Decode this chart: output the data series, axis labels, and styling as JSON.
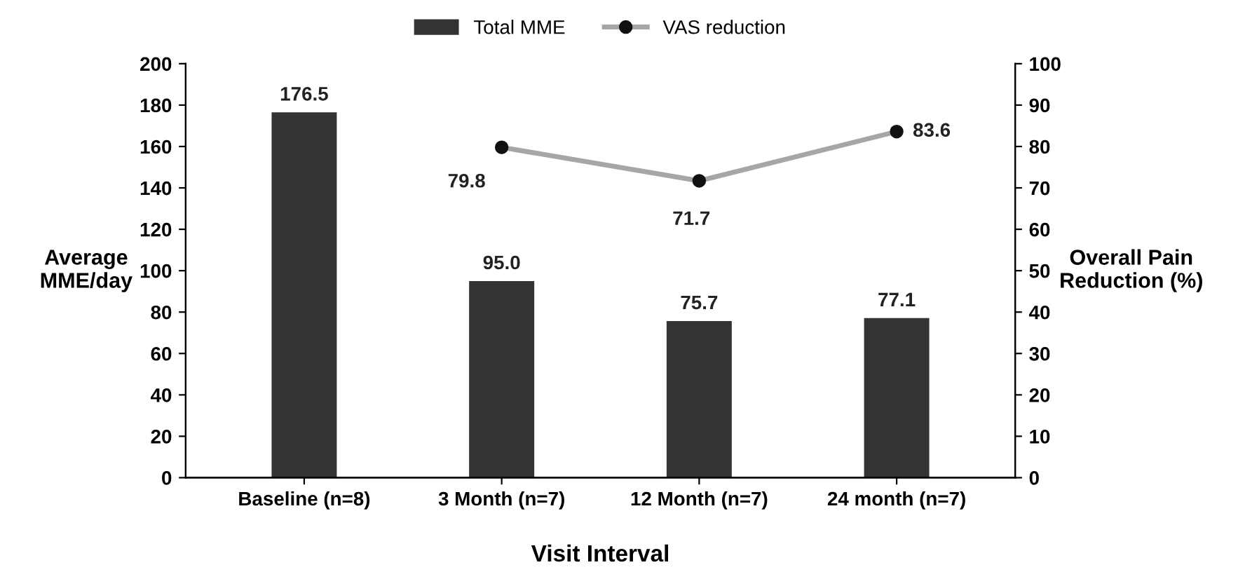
{
  "chart_data": {
    "type": "bar",
    "categories": [
      "Baseline (n=8)",
      "3 Month (n=7)",
      "12 Month (n=7)",
      "24 month (n=7)"
    ],
    "series": [
      {
        "name": "Total MME",
        "color": "#333333",
        "values": [
          176.5,
          95.0,
          75.7,
          77.1
        ],
        "value_labels": [
          "176.5",
          "95.0",
          "75.7",
          "77.1"
        ]
      },
      {
        "name": "VAS reduction",
        "type": "line",
        "axis": "y2",
        "color": "#a6a6a6",
        "marker": "circle",
        "values": [
          null,
          79.8,
          71.7,
          83.6
        ],
        "value_labels": [
          null,
          "79.8",
          "71.7",
          "83.6"
        ]
      }
    ],
    "xlabel": "Visit Interval",
    "ylabel": "Average\nMME/day",
    "y2label": "Overall Pain\nReduction (%)",
    "ylim": [
      0,
      200
    ],
    "yticks": [
      0,
      20,
      40,
      60,
      80,
      100,
      120,
      140,
      160,
      180,
      200
    ],
    "y2lim": [
      0,
      100
    ],
    "y2ticks": [
      0,
      10,
      20,
      30,
      40,
      50,
      60,
      70,
      80,
      90,
      100
    ],
    "grid": false,
    "legend": "top"
  }
}
